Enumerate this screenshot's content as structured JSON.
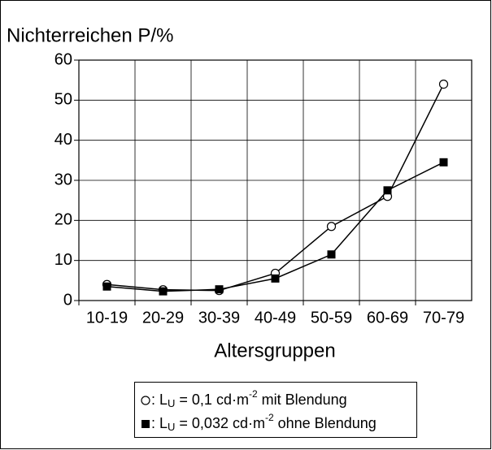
{
  "chart_data": {
    "type": "line",
    "title": "Nichterreichen P/%",
    "x_label": "Altersgruppen",
    "categories": [
      "10-19",
      "20-29",
      "30-39",
      "40-49",
      "50-59",
      "60-69",
      "70-79"
    ],
    "series": [
      {
        "name": [
          ": L",
          "U",
          " = 0,1 cd·m",
          "-2",
          " mit Blendung"
        ],
        "color": "#000000",
        "marker": "open-circle",
        "values": [
          4,
          2.7,
          2.5,
          6.8,
          18.5,
          26,
          54
        ]
      },
      {
        "name": [
          ": L",
          "U",
          " = 0,032 cd·m",
          "-2",
          " ohne Blendung"
        ],
        "color": "#000000",
        "marker": "filled-square",
        "values": [
          3.5,
          2.3,
          2.8,
          5.5,
          11.5,
          27.5,
          34.5
        ]
      }
    ],
    "ylim": [
      0,
      60
    ],
    "yticks": [
      0,
      10,
      20,
      30,
      40,
      50,
      60
    ],
    "grid": true
  }
}
